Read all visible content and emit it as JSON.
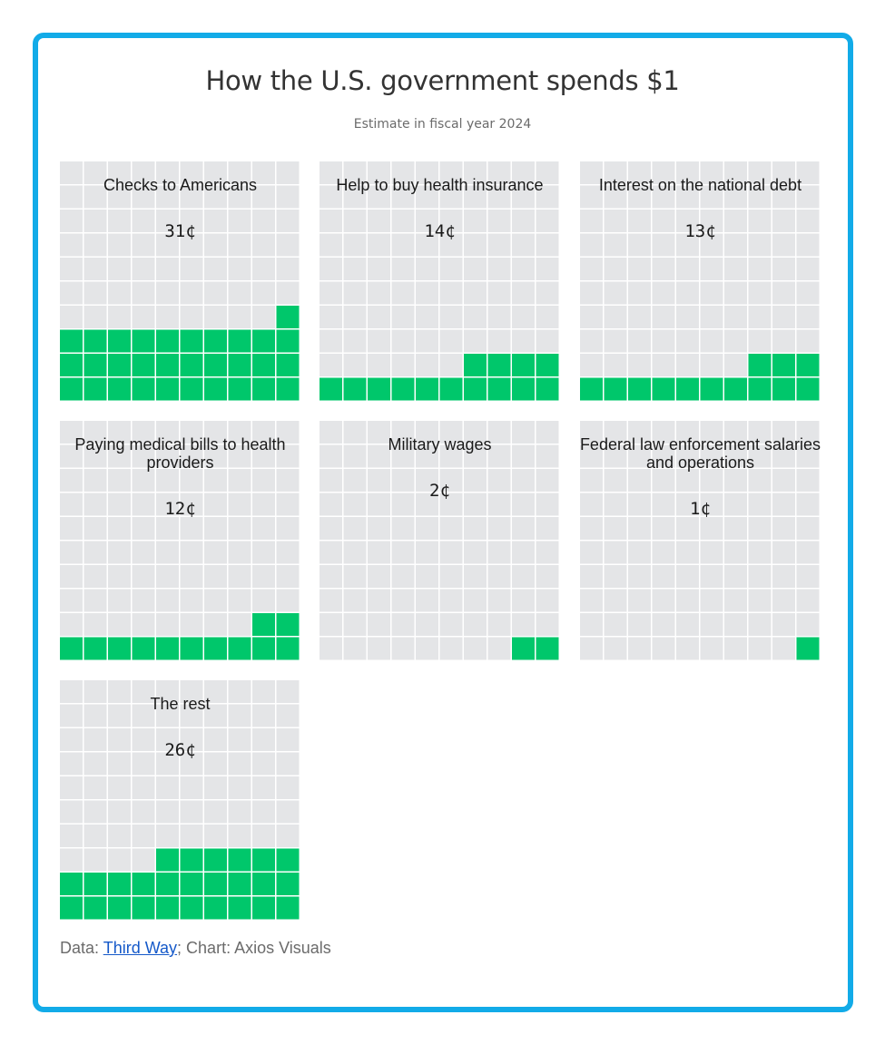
{
  "header": {
    "title": "How the U.S. government spends $1",
    "subtitle": "Estimate in fiscal year 2024"
  },
  "colors": {
    "border": "#12ABE8",
    "filled": "#00C76B",
    "empty": "#E4E5E7"
  },
  "chart_data": {
    "type": "waffle",
    "unit": "¢",
    "cells_per_panel": 100,
    "panels": [
      {
        "label": "Checks to Americans",
        "value": 31,
        "value_label": "31¢"
      },
      {
        "label": "Help to buy health insurance",
        "value": 14,
        "value_label": "14¢"
      },
      {
        "label": "Interest on the national debt",
        "value": 13,
        "value_label": "13¢"
      },
      {
        "label": "Paying medical bills to health providers",
        "value": 12,
        "value_label": "12¢"
      },
      {
        "label": "Military wages",
        "value": 2,
        "value_label": "2¢"
      },
      {
        "label": "Federal law enforcement salaries and operations",
        "value": 1,
        "value_label": "1¢"
      },
      {
        "label": "The rest",
        "value": 26,
        "value_label": "26¢"
      }
    ]
  },
  "footer": {
    "data_prefix": "Data: ",
    "source_link": "Third Way",
    "chart_credit": "; Chart: Axios Visuals"
  }
}
